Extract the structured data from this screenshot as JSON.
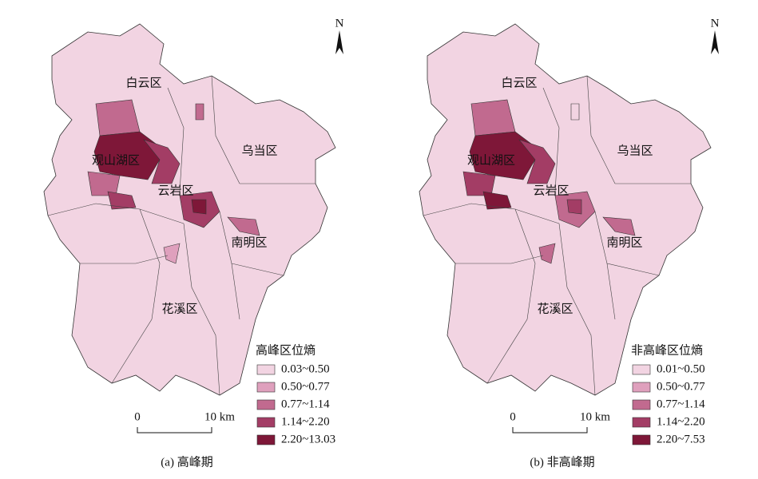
{
  "panels": [
    {
      "north": "N",
      "districts": [
        "白云区",
        "乌当区",
        "观山湖区",
        "云岩区",
        "南明区",
        "花溪区"
      ],
      "legend": {
        "title": "高峰区位熵",
        "items": [
          "0.03~0.50",
          "0.50~0.77",
          "0.77~1.14",
          "1.14~2.20",
          "2.20~13.03"
        ],
        "colors": [
          "#f2d4e2",
          "#dfa0bd",
          "#c16a8f",
          "#a33d65",
          "#7e1738"
        ]
      },
      "scale": {
        "start": "0",
        "end": "10 km"
      },
      "caption": "(a) 高峰期"
    },
    {
      "north": "N",
      "districts": [
        "白云区",
        "乌当区",
        "观山湖区",
        "云岩区",
        "南明区",
        "花溪区"
      ],
      "legend": {
        "title": "非高峰区位熵",
        "items": [
          "0.01~0.50",
          "0.50~0.77",
          "0.77~1.14",
          "1.14~2.20",
          "2.20~7.53"
        ],
        "colors": [
          "#f2d4e2",
          "#dfa0bd",
          "#c16a8f",
          "#a33d65",
          "#7e1738"
        ]
      },
      "scale": {
        "start": "0",
        "end": "10 km"
      },
      "caption": "(b) 非高峰期"
    }
  ]
}
